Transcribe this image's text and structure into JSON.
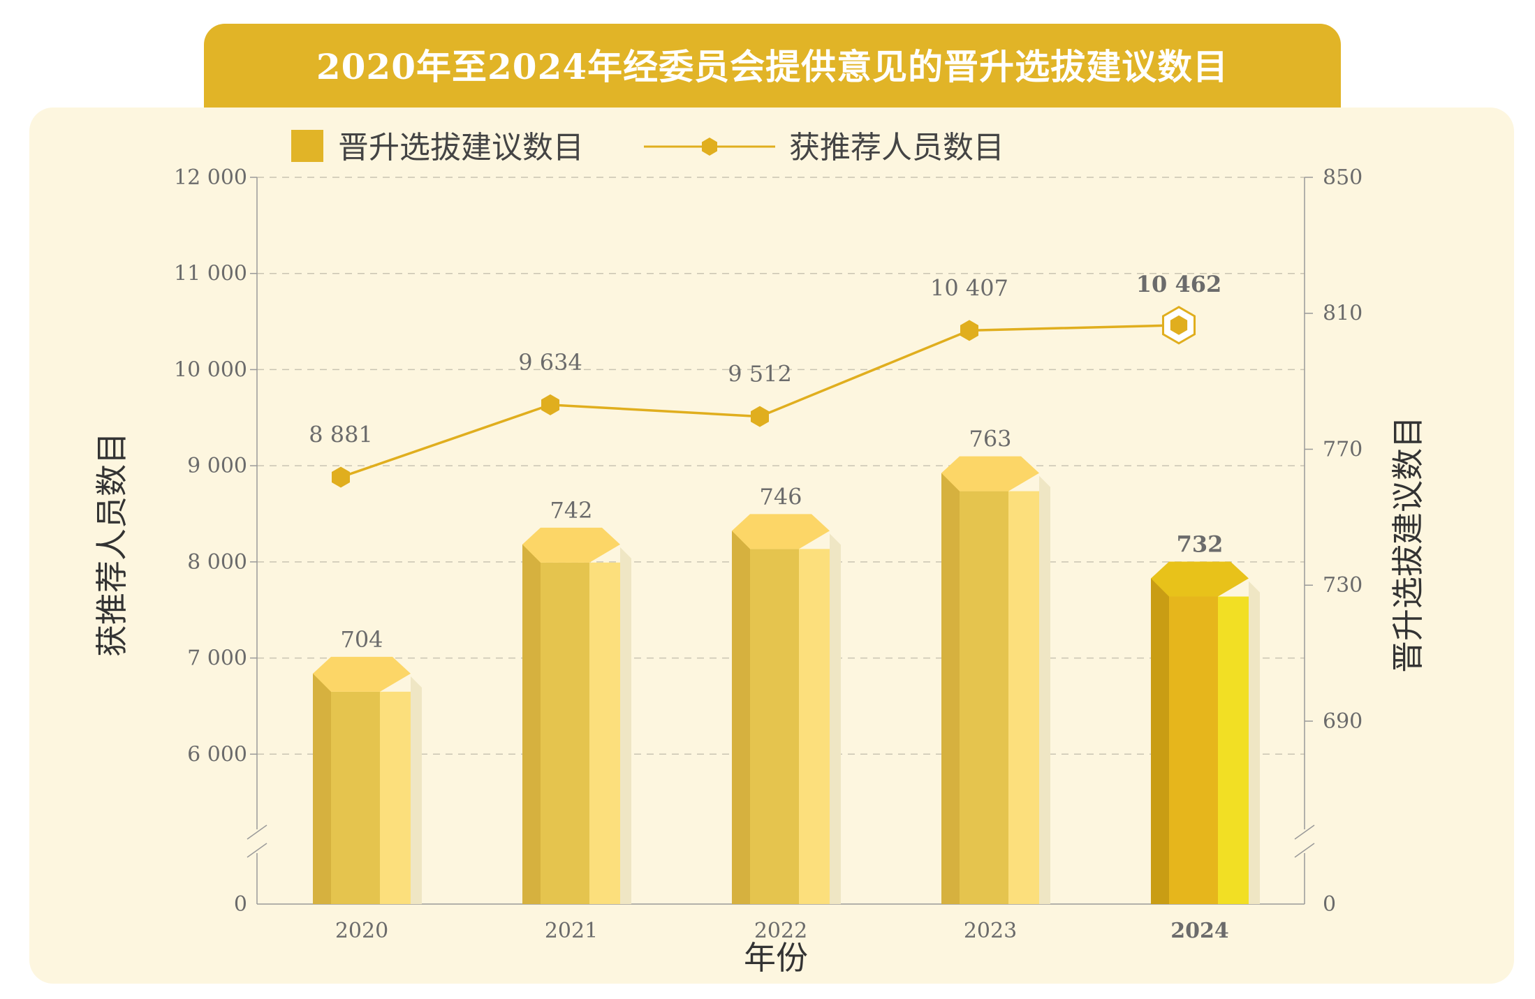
{
  "title": "2020年至2024年经委员会提供意见的晋升选拔建议数目",
  "colors": {
    "title_bg": "#e1b427",
    "panel_bg": "#fdf6df",
    "bar_front": "#e5c44e",
    "bar_left": "#d6b13f",
    "bar_right": "#fcdf7c",
    "bar_top": "#fcd667",
    "highlight_front": "#e6b61c",
    "highlight_left": "#c99d14",
    "highlight_right": "#f2df24",
    "highlight_top": "#e8c21a",
    "line": "#e0ae1e",
    "highlight_label": "#dcac1a",
    "grid": "#c9c4b2"
  },
  "legend": {
    "bars_label": "晋升选拔建议数目",
    "line_label": "获推荐人员数目",
    "bars_icon": "square-swatch",
    "line_icon": "hexagon-marker-line"
  },
  "chart_data": {
    "type": "bar",
    "categories": [
      "2020",
      "2021",
      "2022",
      "2023",
      "2024"
    ],
    "highlight_category": "2024",
    "series": [
      {
        "name": "晋升选拔建议数目",
        "type": "bar",
        "axis": "right",
        "values": [
          704,
          742,
          746,
          763,
          732
        ],
        "labels": [
          "704",
          "742",
          "746",
          "763",
          "732"
        ]
      },
      {
        "name": "获推荐人员数目",
        "type": "line",
        "axis": "left",
        "values": [
          8881,
          9634,
          9512,
          10407,
          10462
        ],
        "labels": [
          "8 881",
          "9 634",
          "9 512",
          "10 407",
          "10 462"
        ]
      }
    ],
    "xlabel": "年份",
    "ylabel_left": "获推荐人员数目",
    "ylabel_right": "晋升选拔建议数目",
    "y_left": {
      "range": [
        5000,
        12000
      ],
      "ticks": [
        6000,
        7000,
        8000,
        9000,
        10000,
        11000,
        12000
      ],
      "tick_labels": [
        "6 000",
        "7 000",
        "8 000",
        "9 000",
        "10 000",
        "11 000",
        "12 000"
      ],
      "zero_label": "0",
      "axis_break": true
    },
    "y_right": {
      "range": [
        652,
        850
      ],
      "ticks": [
        690,
        730,
        770,
        810,
        850
      ],
      "tick_labels": [
        "690",
        "730",
        "770",
        "810",
        "850"
      ],
      "zero_label": "0",
      "axis_break": true
    },
    "grid": true,
    "legend_position": "top"
  }
}
